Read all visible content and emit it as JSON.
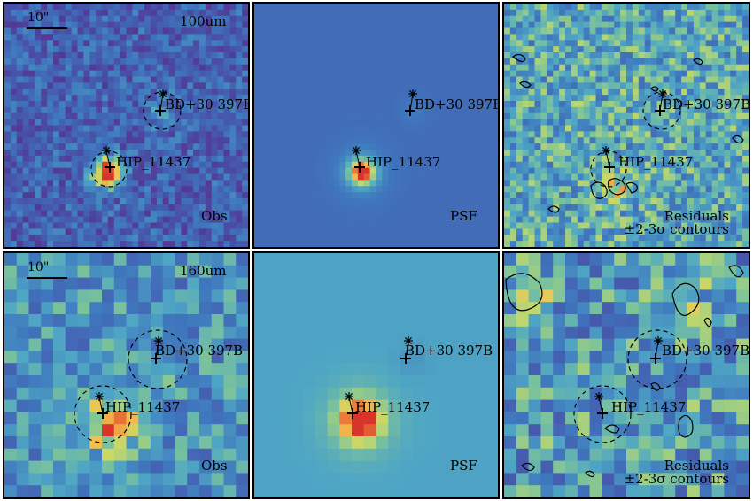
{
  "figure": {
    "rows": [
      {
        "band": "100um",
        "panels": [
          {
            "id": "obs-100",
            "kind": "obs",
            "label": "Obs",
            "palette": "obs100",
            "scalebar": "10\""
          },
          {
            "id": "psf-100",
            "kind": "psf",
            "label": "PSF",
            "palette": "psf100"
          },
          {
            "id": "res-100",
            "kind": "res",
            "label": "Residuals",
            "sublabel": "±2-3σ contours",
            "palette": "res100"
          }
        ]
      },
      {
        "band": "160um",
        "panels": [
          {
            "id": "obs-160",
            "kind": "obs",
            "label": "Obs",
            "palette": "obs160",
            "scalebar": "10\""
          },
          {
            "id": "psf-160",
            "kind": "psf",
            "label": "PSF",
            "palette": "psf160"
          },
          {
            "id": "res-160",
            "kind": "res",
            "label": "Residuals",
            "sublabel": "±2-3σ contours",
            "palette": "res160"
          }
        ]
      }
    ],
    "sources": {
      "primary": "HIP_11437",
      "secondary": "BD+30 397B"
    },
    "colors": {
      "obs_bg": "#3f63b0",
      "psf_bg_100": "#3a5ab0",
      "psf_bg_160": "#5fa3c8",
      "res_bg": "#4f8fc4",
      "peak": "#d8352a",
      "frame": "#000000"
    },
    "icons": [
      "star-marker-icon",
      "plus-marker-icon",
      "dashed-circle-icon"
    ]
  }
}
